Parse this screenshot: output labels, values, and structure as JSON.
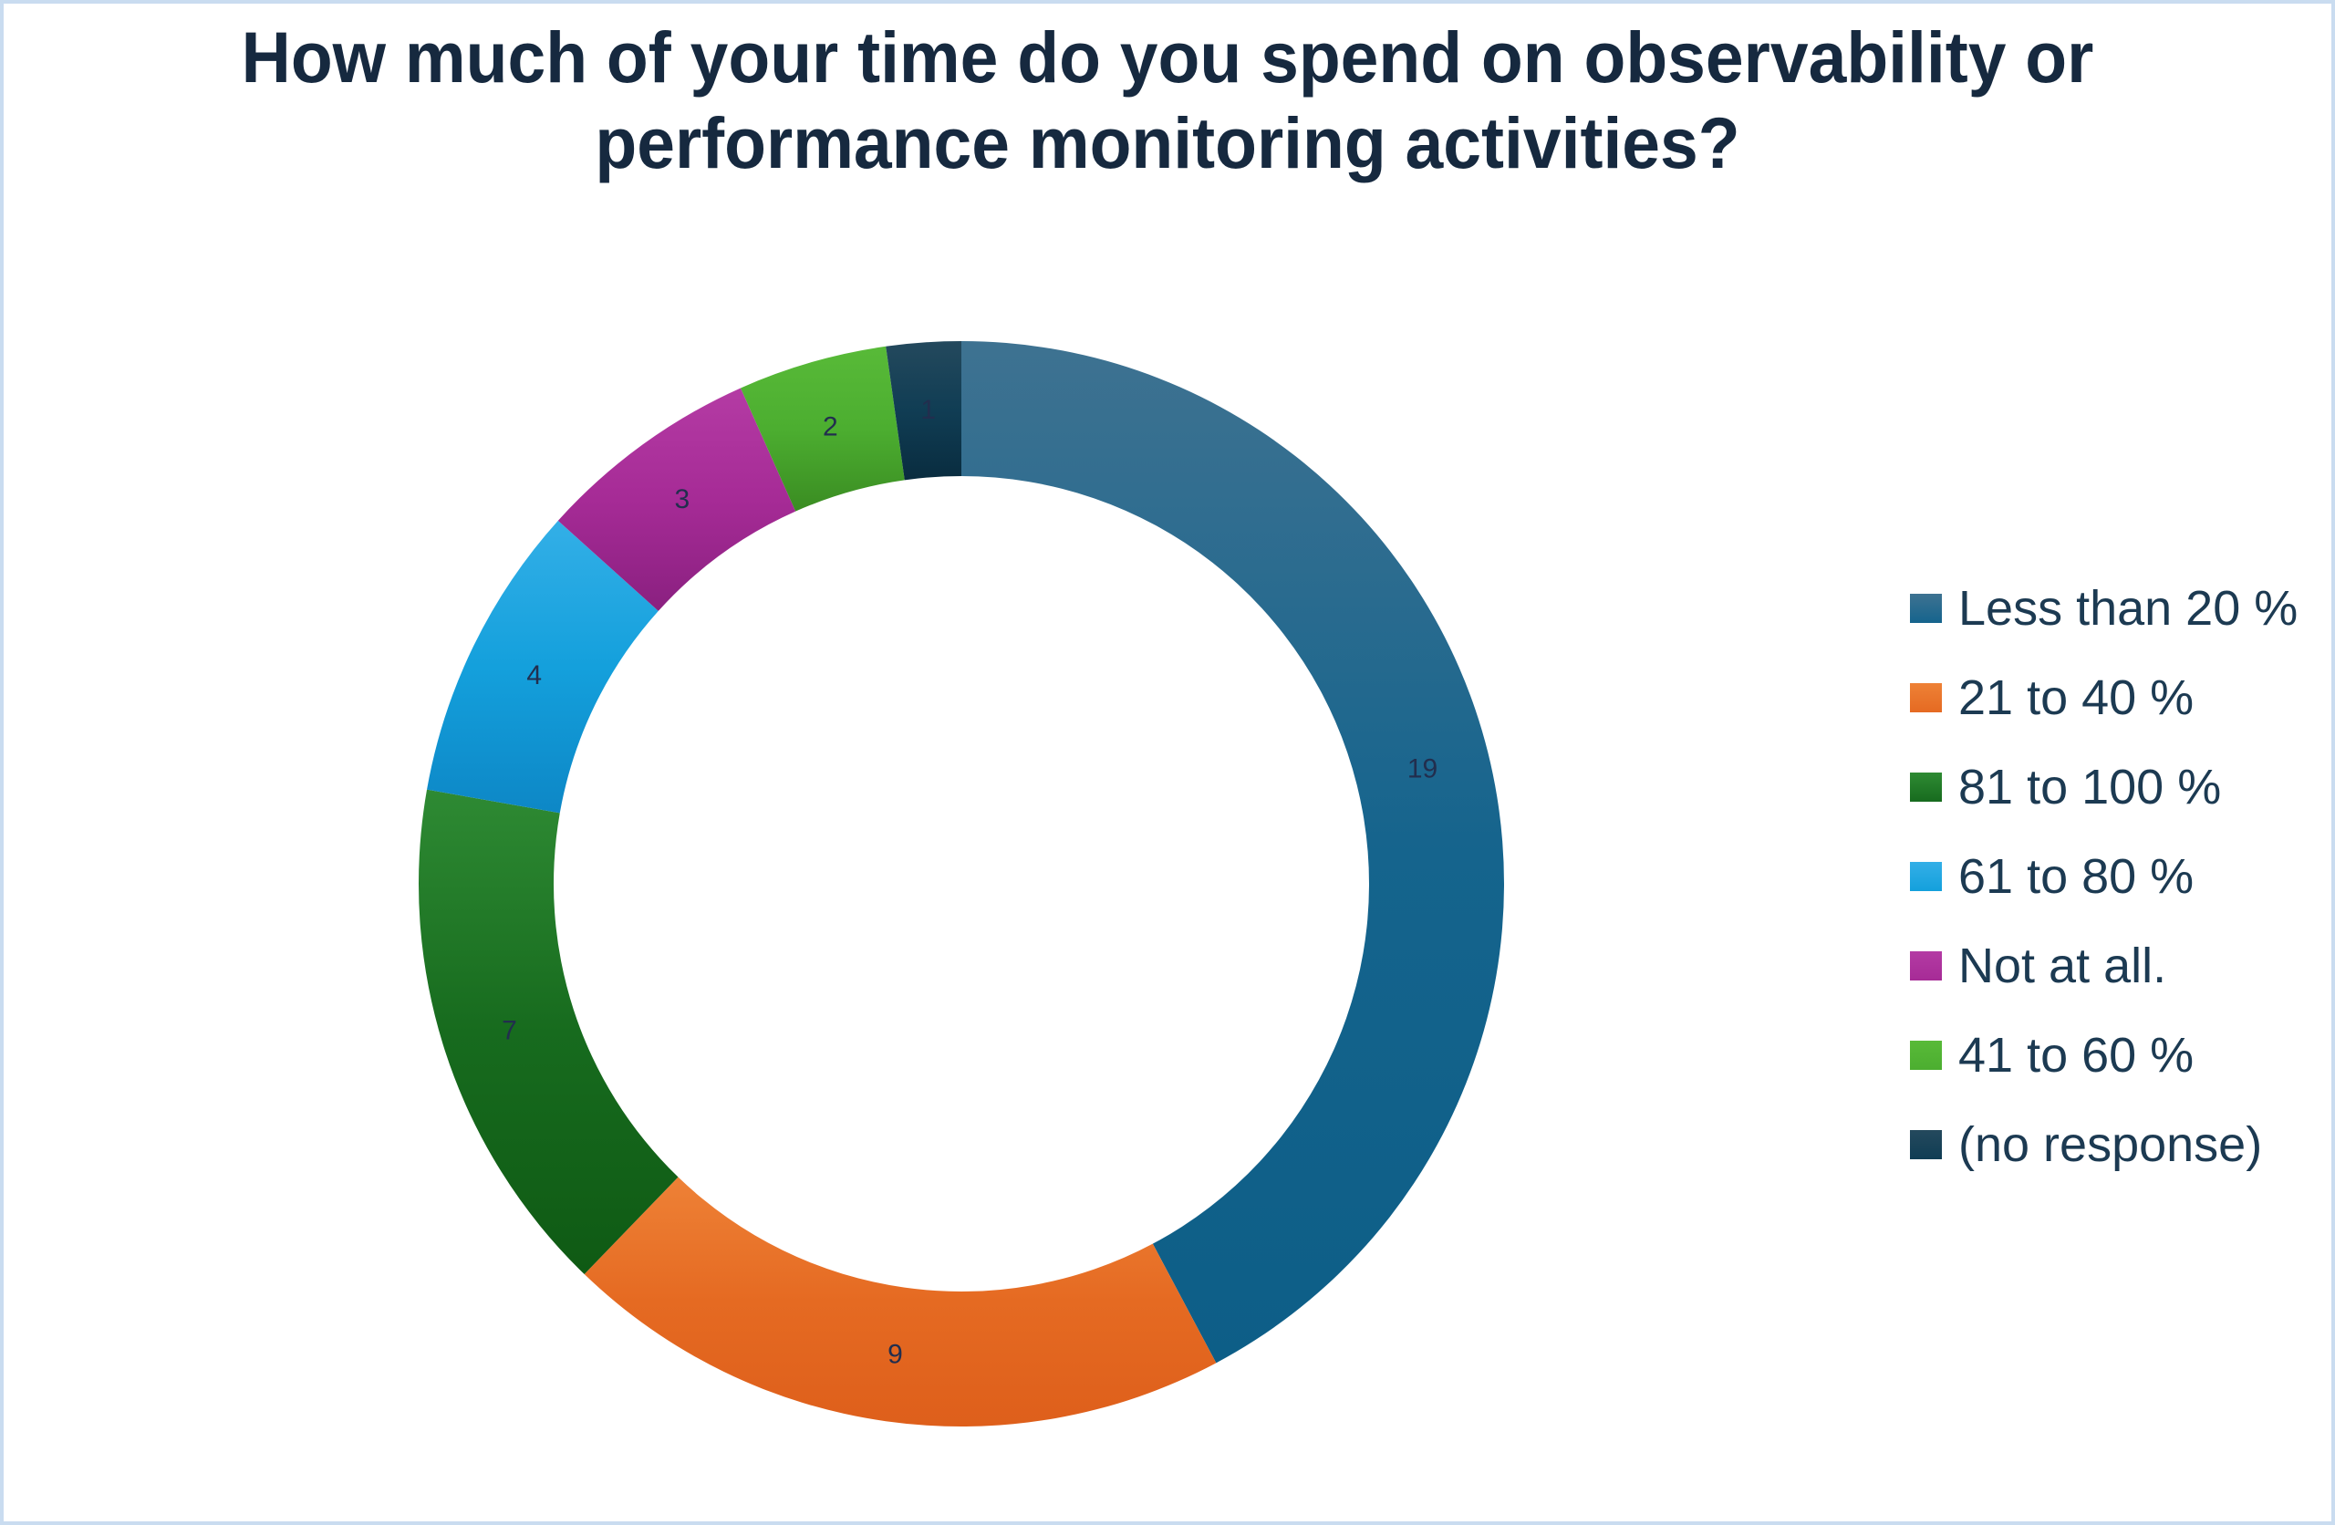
{
  "title": {
    "text": "How much of your time do you spend on observability or performance monitoring activities?",
    "lines": [
      "How much of your time do you spend on observability or",
      "performance monitoring activities?"
    ],
    "color": "#16293F"
  },
  "frame": {
    "border_color": "#C9DCF0",
    "background_color": "#FFFFFF"
  },
  "chart_data": {
    "type": "pie",
    "subtype": "donut",
    "title": "How much of your time do you spend on observability or performance monitoring activities?",
    "categories": [
      "Less than 20 %",
      "21 to 40 %",
      "81 to 100 %",
      "61 to 80 %",
      "Not at all.",
      "41 to 60 %",
      "(no response)"
    ],
    "values": [
      19,
      9,
      7,
      4,
      3,
      2,
      1
    ],
    "total": 45,
    "start_angle_deg": 0,
    "direction": "clockwise",
    "donut_hole_ratio": 0.75,
    "data_labels_shown": true,
    "label_color": "#222E4E",
    "legend_position": "right",
    "slices": [
      {
        "label": "Less than 20 %",
        "value": 19,
        "gradient": [
          "#3E7291",
          "#15648D",
          "#0D5E87"
        ]
      },
      {
        "label": "21 to 40 %",
        "value": 9,
        "gradient": [
          "#EE8136",
          "#E56A22",
          "#DE5F1B"
        ]
      },
      {
        "label": "81 to 100 %",
        "value": 7,
        "gradient": [
          "#2E8A33",
          "#176B1E",
          "#0F5A14"
        ]
      },
      {
        "label": "61 to 80 %",
        "value": 4,
        "gradient": [
          "#33AFE7",
          "#14A0DC",
          "#0D87C6"
        ]
      },
      {
        "label": "Not at all.",
        "value": 3,
        "gradient": [
          "#B43BA4",
          "#A62B96",
          "#8A2080"
        ]
      },
      {
        "label": "41 to 60 %",
        "value": 2,
        "gradient": [
          "#58BA38",
          "#4CAE30",
          "#3A8C22"
        ]
      },
      {
        "label": "(no response)",
        "value": 1,
        "gradient": [
          "#24495D",
          "#103D54",
          "#092C3F"
        ]
      }
    ]
  },
  "legend": {
    "text_color": "#1C3A52"
  }
}
